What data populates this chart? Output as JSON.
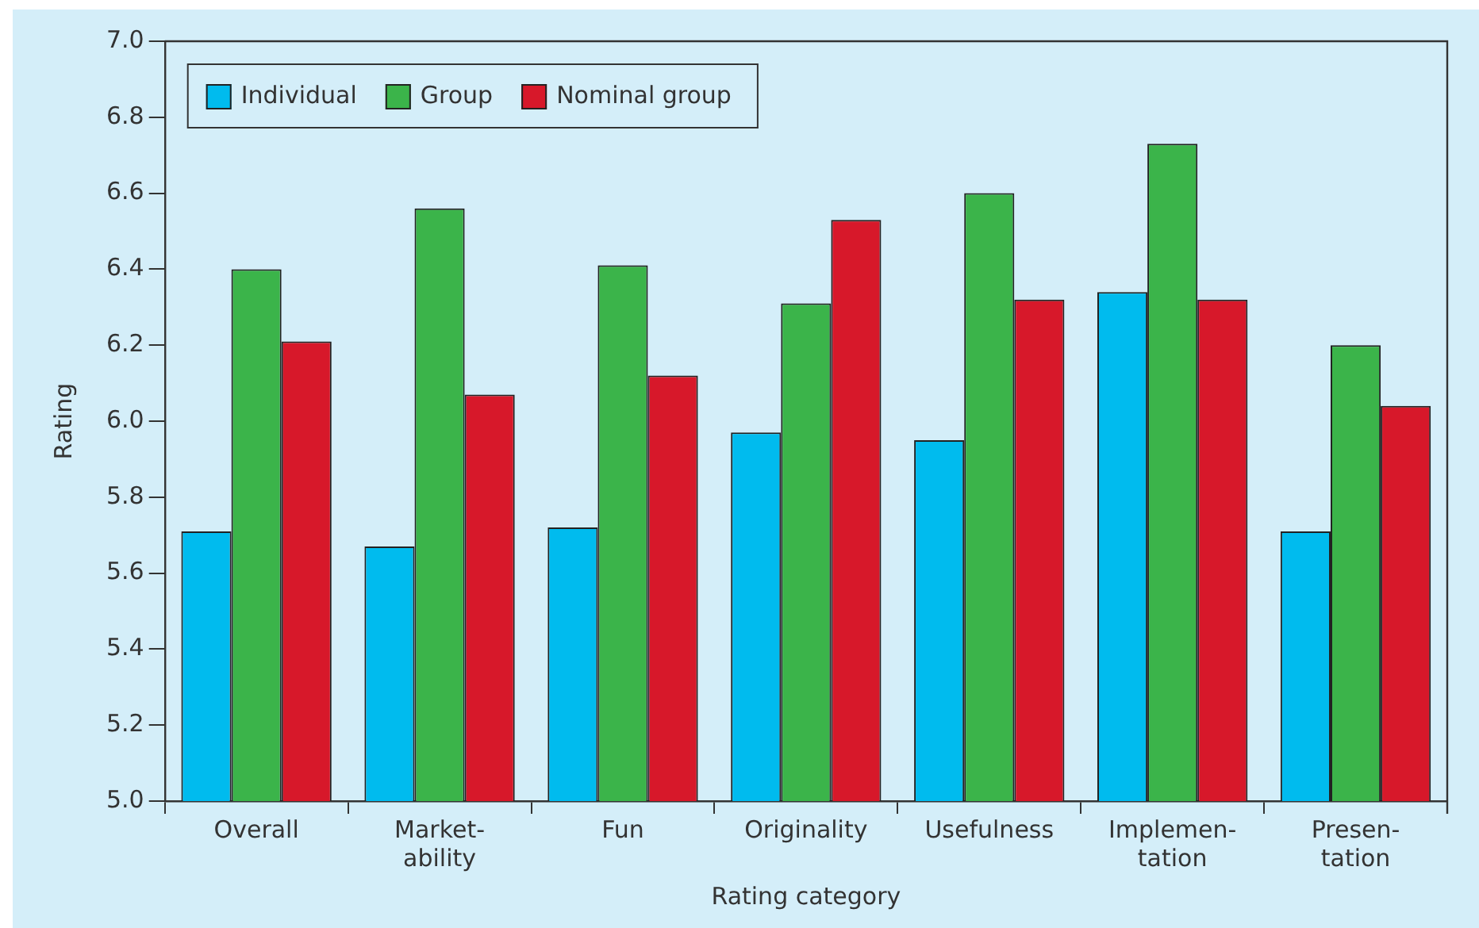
{
  "chart_data": {
    "type": "bar",
    "xlabel": "Rating category",
    "ylabel": "Rating",
    "categories": [
      "Overall",
      "Market-\nability",
      "Fun",
      "Originality",
      "Usefulness",
      "Implemen-\ntation",
      "Presen-\ntation"
    ],
    "series": [
      {
        "name": "Individual",
        "color": "#00bbee",
        "values": [
          5.71,
          5.67,
          5.72,
          5.97,
          5.95,
          6.34,
          5.71
        ]
      },
      {
        "name": "Group",
        "color": "#3bb44a",
        "values": [
          6.4,
          6.56,
          6.41,
          6.31,
          6.6,
          6.73,
          6.2
        ]
      },
      {
        "name": "Nominal group",
        "color": "#d7182a",
        "values": [
          6.21,
          6.07,
          6.12,
          6.53,
          6.32,
          6.32,
          6.04
        ]
      }
    ],
    "ylim": [
      5.0,
      7.0
    ],
    "yticks": [
      {
        "value": 5.0,
        "label": "5.0"
      },
      5.2,
      5.4,
      5.6,
      5.8,
      {
        "value": 6.0,
        "label": "6.0"
      },
      6.2,
      6.4,
      6.6,
      6.8,
      {
        "value": 7.0,
        "label": "7.0"
      }
    ],
    "grid": false,
    "legend": "top left"
  }
}
